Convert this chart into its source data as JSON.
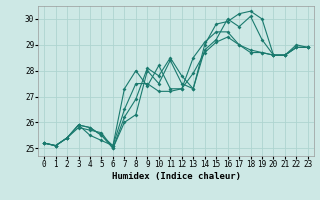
{
  "background_color": "#cde8e5",
  "grid_color": "#aed4d0",
  "line_color": "#1a7a6e",
  "xlabel": "Humidex (Indice chaleur)",
  "xlim": [
    -0.5,
    23.5
  ],
  "ylim": [
    24.7,
    30.5
  ],
  "yticks": [
    25,
    26,
    27,
    28,
    29,
    30
  ],
  "xticks": [
    0,
    1,
    2,
    3,
    4,
    5,
    6,
    7,
    8,
    9,
    10,
    11,
    12,
    13,
    14,
    15,
    16,
    17,
    18,
    19,
    20,
    21,
    22,
    23
  ],
  "series": [
    [
      25.2,
      25.1,
      25.4,
      25.8,
      25.7,
      25.6,
      25.0,
      26.0,
      26.3,
      28.0,
      27.5,
      28.4,
      27.5,
      27.3,
      29.0,
      29.8,
      29.9,
      30.2,
      30.3,
      30.0,
      28.6,
      28.6,
      29.0,
      28.9
    ],
    [
      25.2,
      25.1,
      25.4,
      25.9,
      25.8,
      25.5,
      25.0,
      26.2,
      26.9,
      28.1,
      27.8,
      28.5,
      27.8,
      27.3,
      28.8,
      29.2,
      30.0,
      29.7,
      30.1,
      29.2,
      28.6,
      28.6,
      28.9,
      28.9
    ],
    [
      25.2,
      25.1,
      25.4,
      25.9,
      25.8,
      25.5,
      25.1,
      27.3,
      28.0,
      27.4,
      28.2,
      27.3,
      27.3,
      28.5,
      29.1,
      29.5,
      29.5,
      29.0,
      28.7,
      28.7,
      28.6,
      28.6,
      28.9,
      28.9
    ],
    [
      25.2,
      25.1,
      25.4,
      25.9,
      25.5,
      25.3,
      25.1,
      26.5,
      27.5,
      27.5,
      27.2,
      27.2,
      27.3,
      27.9,
      28.7,
      29.1,
      29.3,
      29.0,
      28.8,
      28.7,
      28.6,
      28.6,
      28.9,
      28.9
    ]
  ]
}
